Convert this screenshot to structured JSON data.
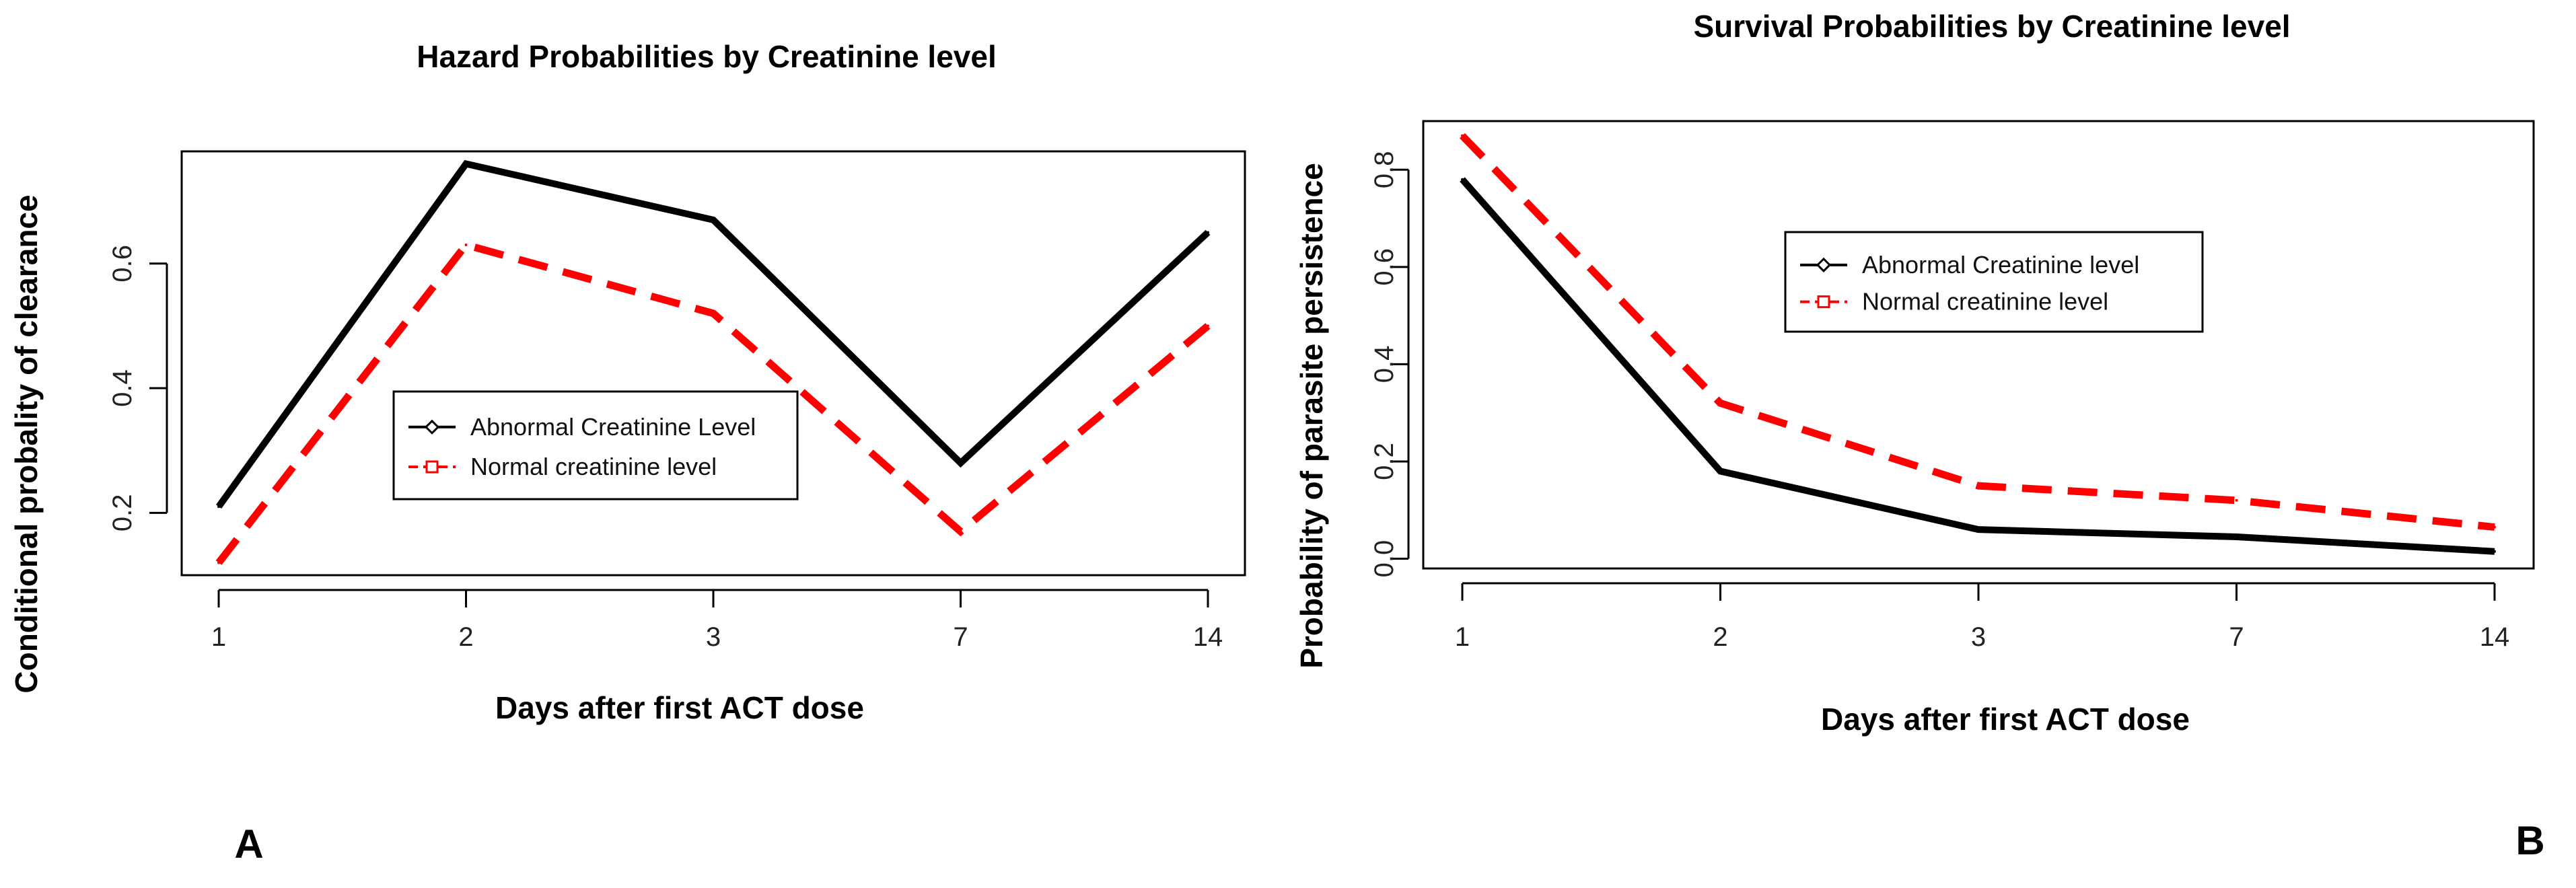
{
  "panel_labels": [
    "A",
    "B"
  ],
  "chart_data": [
    {
      "type": "line",
      "title": "Hazard Probabilities by Creatinine level",
      "xlabel": "Days after first ACT dose",
      "ylabel": "Conditional probality of clearance",
      "categories": [
        "1",
        "2",
        "3",
        "7",
        "14"
      ],
      "y_ticks": [
        0.2,
        0.4,
        0.6
      ],
      "y_tick_labels": [
        "0.2",
        "0.4",
        "0.6"
      ],
      "ylim": [
        0.1,
        0.78
      ],
      "grid": false,
      "legend_position": "center",
      "series": [
        {
          "name": "Abnormal Creatinine Level",
          "values": [
            0.21,
            0.76,
            0.67,
            0.28,
            0.65
          ],
          "color": "#000000",
          "dash": "solid",
          "marker": "diamond"
        },
        {
          "name": "Normal creatinine level",
          "values": [
            0.12,
            0.63,
            0.52,
            0.17,
            0.5
          ],
          "color": "#ff0000",
          "dash": "dashed",
          "marker": "square"
        }
      ]
    },
    {
      "type": "line",
      "title": "Survival Probabilities by Creatinine level",
      "xlabel": "Days after first ACT dose",
      "ylabel": "Probability of parasite persistence",
      "categories": [
        "1",
        "2",
        "3",
        "7",
        "14"
      ],
      "y_ticks": [
        0.0,
        0.2,
        0.4,
        0.6,
        0.8
      ],
      "y_tick_labels": [
        "0.0",
        "0.2",
        "0.4",
        "0.6",
        "0.8"
      ],
      "ylim": [
        -0.02,
        0.9
      ],
      "grid": false,
      "legend_position": "top-center",
      "series": [
        {
          "name": "Abnormal Creatinine level",
          "values": [
            0.78,
            0.18,
            0.06,
            0.045,
            0.015
          ],
          "color": "#000000",
          "dash": "solid",
          "marker": "diamond"
        },
        {
          "name": "Normal creatinine level",
          "values": [
            0.87,
            0.32,
            0.15,
            0.12,
            0.065
          ],
          "color": "#ff0000",
          "dash": "dashed",
          "marker": "square"
        }
      ]
    }
  ]
}
